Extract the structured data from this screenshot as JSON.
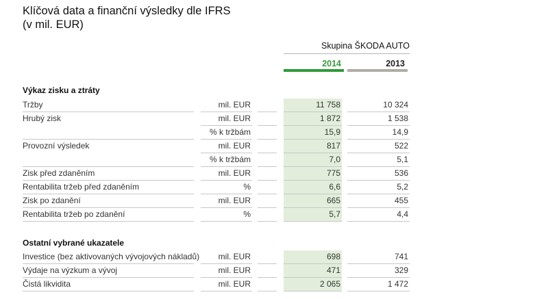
{
  "title": {
    "line1": "Klíčová data a finanční výsledky dle IFRS",
    "line2": "(v mil. EUR)"
  },
  "group_header": "Skupina ŠKODA AUTO",
  "years": {
    "current": "2014",
    "previous": "2013"
  },
  "colors": {
    "current_year": "#2e9a3a",
    "previous_year": "#b0aca6",
    "highlight_column": "#e2eedb"
  },
  "sections": [
    {
      "title": "Výkaz zisku a ztráty",
      "rows": [
        {
          "label": "Tržby",
          "unit": "mil. EUR",
          "v2014": "11 758",
          "v2013": "10 324"
        },
        {
          "label": "Hrubý zisk",
          "unit": "mil. EUR",
          "v2014": "1 872",
          "v2013": "1 538"
        },
        {
          "label": "",
          "unit": "% k tržbám",
          "v2014": "15,9",
          "v2013": "14,9"
        },
        {
          "label": "Provozní výsledek",
          "unit": "mil. EUR",
          "v2014": "817",
          "v2013": "522"
        },
        {
          "label": "",
          "unit": "% k tržbám",
          "v2014": "7,0",
          "v2013": "5,1"
        },
        {
          "label": "Zisk před zdaněním",
          "unit": "mil. EUR",
          "v2014": "775",
          "v2013": "536"
        },
        {
          "label": "Rentabilita tržeb před zdaněním",
          "unit": "%",
          "v2014": "6,6",
          "v2013": "5,2"
        },
        {
          "label": "Zisk po zdanění",
          "unit": "mil. EUR",
          "v2014": "665",
          "v2013": "455"
        },
        {
          "label": "Rentabilita tržeb po zdanění",
          "unit": "%",
          "v2014": "5,7",
          "v2013": "4,4"
        }
      ]
    },
    {
      "title": "Ostatní vybrané ukazatele",
      "rows": [
        {
          "label": "Investice (bez aktivovaných vývojových nákladů)",
          "unit": "mil. EUR",
          "v2014": "698",
          "v2013": "741"
        },
        {
          "label": "Výdaje na výzkum a vývoj",
          "unit": "mil. EUR",
          "v2014": "471",
          "v2013": "329"
        },
        {
          "label": "Čistá likvidita",
          "unit": "mil. EUR",
          "v2014": "2 065",
          "v2013": "1 472"
        }
      ]
    }
  ]
}
